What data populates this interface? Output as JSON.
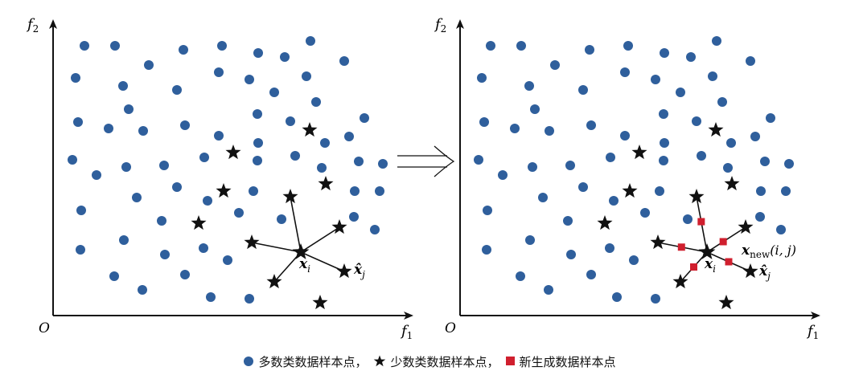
{
  "colors": {
    "majority": "#2f5f9c",
    "minority": "#111111",
    "synthetic": "#d01f2e",
    "axis": "#111111"
  },
  "panels": [
    {
      "id": "original",
      "origin_label": "O",
      "x_axis_label": "f",
      "x_axis_sub": "1",
      "y_axis_label": "f",
      "y_axis_sub": "2",
      "center_label": "x",
      "center_sub": "i",
      "neighbor_label": "x̂",
      "neighbor_sub": "j"
    },
    {
      "id": "oversampled",
      "origin_label": "O",
      "x_axis_label": "f",
      "x_axis_sub": "1",
      "y_axis_label": "f",
      "y_axis_sub": "2",
      "center_label": "x",
      "center_sub": "i",
      "neighbor_label": "x̂",
      "neighbor_sub": "j",
      "new_label": "x",
      "new_sub": "new",
      "new_args": "(i, j)"
    }
  ],
  "legend": {
    "majority": "多数类数据样本点，",
    "minority": "少数类数据样本点，",
    "synthetic": "新生成数据样本点"
  }
}
